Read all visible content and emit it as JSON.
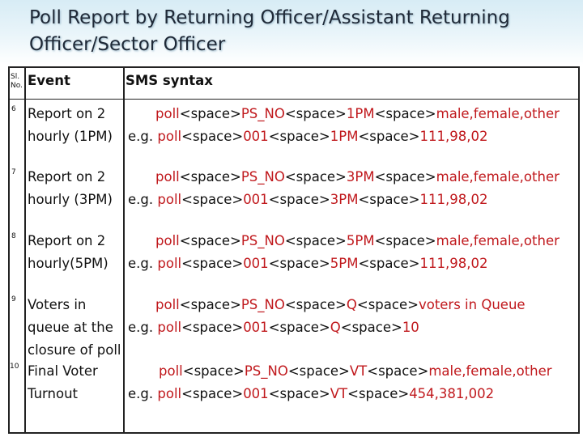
{
  "title": "Poll Report by Returning Officer/Assistant Returning Officer/Sector Officer",
  "header": {
    "sl": "Sl. No.",
    "event": "Event",
    "syntax": "SMS syntax"
  },
  "rows": [
    {
      "no": "6",
      "event": "Report on 2 hourly (1PM)",
      "line1": [
        "poll",
        "<space>",
        "PS_NO",
        "<space>",
        "1PM",
        "<space>",
        "male,female,other"
      ],
      "line2": [
        "e.g. ",
        "poll",
        "<space>",
        "001",
        "<space>",
        "1PM",
        "<space>",
        "111,98,02"
      ]
    },
    {
      "no": "7",
      "event": "Report on 2 hourly (3PM)",
      "line1": [
        "poll",
        "<space>",
        "PS_NO",
        "<space>",
        "3PM",
        "<space>",
        "male,female,other"
      ],
      "line2": [
        "e.g.  ",
        "poll",
        "<space>",
        "001",
        "<space>",
        "3PM",
        "<space>",
        "111,98,02"
      ]
    },
    {
      "no": "8",
      "event": "Report on 2 hourly(5PM)",
      "line1": [
        "poll",
        "<space>",
        "PS_NO",
        "<space>",
        "5PM",
        "<space>",
        "male,female,other"
      ],
      "line2": [
        "e.g.  ",
        "poll",
        "<space>",
        "001",
        "<space>",
        "5PM",
        "<space>",
        "111,98,02"
      ]
    },
    {
      "no": "9",
      "event": "Voters in queue at the closure of poll",
      "line1": [
        "poll",
        "<space>",
        "PS_NO",
        "<space>",
        "Q",
        "<space>",
        "voters in Queue"
      ],
      "line2": [
        "e.g.  ",
        "poll",
        "<space>",
        "001",
        "<space>",
        "Q",
        "<space>",
        "10"
      ]
    },
    {
      "no": "10",
      "event": "Final Voter Turnout",
      "line1": [
        "poll",
        "<space>",
        "PS_NO",
        "<space>",
        "VT",
        "<space>",
        "male,female,other"
      ],
      "line2": [
        "e.g.  ",
        "poll",
        "<space>",
        "001",
        "<space>",
        "VT",
        "<space>",
        "454,381,002"
      ]
    }
  ]
}
